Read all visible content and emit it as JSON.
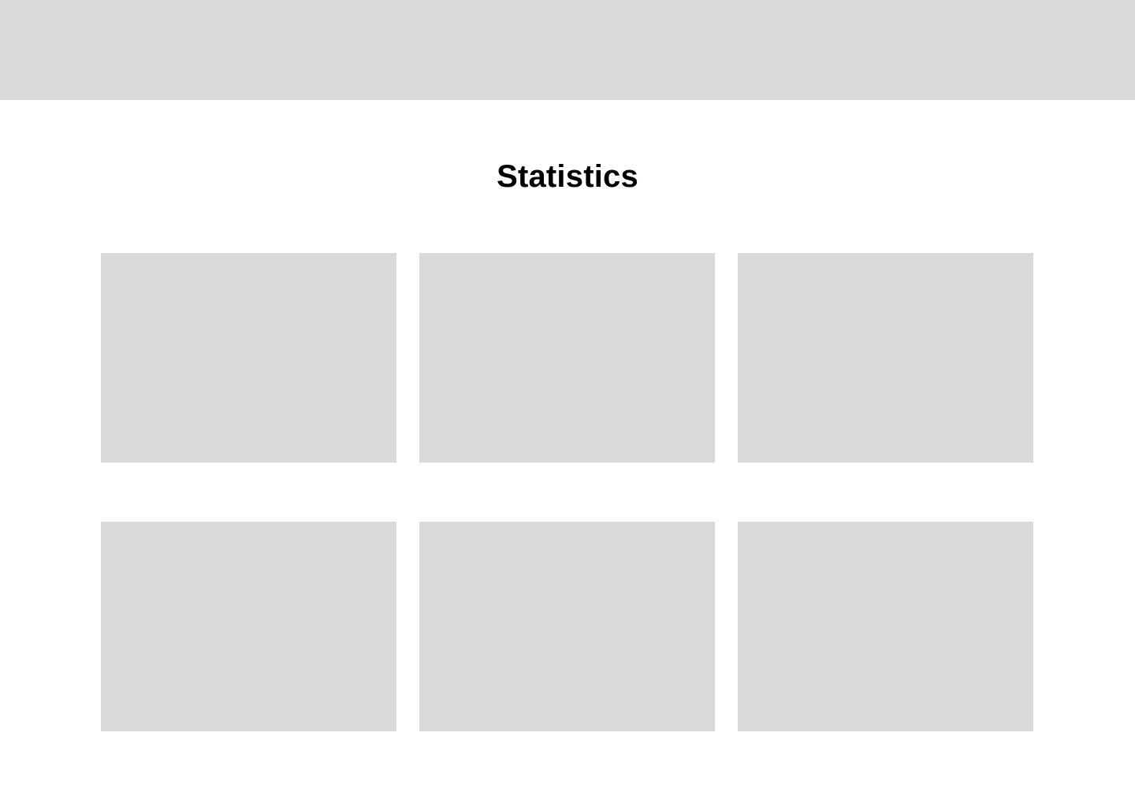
{
  "header": {
    "background": "#d9d9d9"
  },
  "main": {
    "title": "Statistics",
    "cards": [
      {
        "placeholder": true
      },
      {
        "placeholder": true
      },
      {
        "placeholder": true
      },
      {
        "placeholder": true
      },
      {
        "placeholder": true
      },
      {
        "placeholder": true
      }
    ],
    "card_color": "#d9d9d9"
  }
}
